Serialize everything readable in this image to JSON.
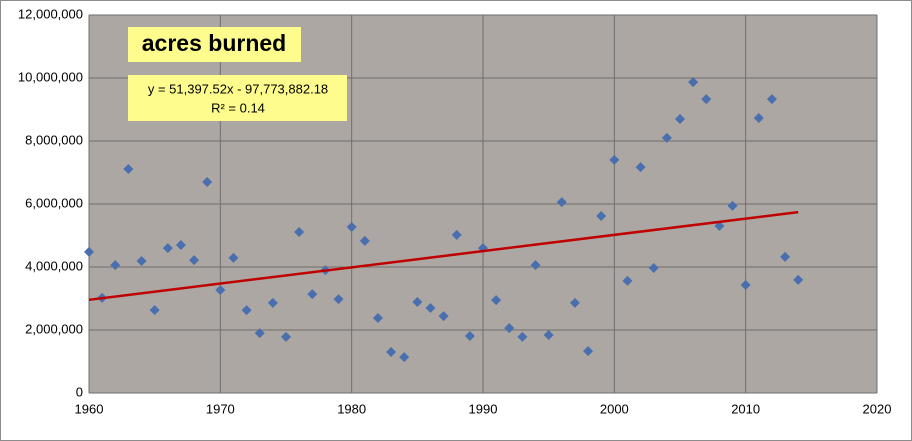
{
  "chart_data": {
    "type": "scatter",
    "title": "acres burned",
    "trendline_equation": "y = 51,397.52x - 97,773,882.18",
    "trendline_r2": "R² = 0.14",
    "x": [
      1960,
      1961,
      1962,
      1963,
      1964,
      1965,
      1966,
      1967,
      1968,
      1969,
      1970,
      1971,
      1972,
      1973,
      1974,
      1975,
      1976,
      1977,
      1978,
      1979,
      1980,
      1981,
      1982,
      1983,
      1984,
      1985,
      1986,
      1987,
      1988,
      1989,
      1990,
      1991,
      1992,
      1993,
      1994,
      1995,
      1996,
      1997,
      1998,
      1999,
      2000,
      2001,
      2002,
      2003,
      2004,
      2005,
      2006,
      2007,
      2008,
      2009,
      2010,
      2011,
      2012,
      2013,
      2014
    ],
    "values": [
      4480000,
      3020000,
      4060000,
      7110000,
      4190000,
      2630000,
      4600000,
      4700000,
      4220000,
      6700000,
      3270000,
      4290000,
      2630000,
      1900000,
      2860000,
      1780000,
      5110000,
      3140000,
      3900000,
      2980000,
      5270000,
      4830000,
      2380000,
      1300000,
      1140000,
      2890000,
      2700000,
      2440000,
      5020000,
      1810000,
      4600000,
      2950000,
      2060000,
      1780000,
      4060000,
      1840000,
      6060000,
      2860000,
      1330000,
      5620000,
      7400000,
      3560000,
      7170000,
      3970000,
      8100000,
      8700000,
      9870000,
      9330000,
      5300000,
      5940000,
      3430000,
      8730000,
      9330000,
      4320000,
      3590000
    ],
    "color": "#4a6fae",
    "trendline_color": "#c00000",
    "xlim": [
      1960,
      2020
    ],
    "xticks": [
      1960,
      1970,
      1980,
      1990,
      2000,
      2010,
      2020
    ],
    "ylim": [
      0,
      12000000
    ],
    "yticks": [
      0,
      {
        "value": 2000000,
        "label": "2,000,000"
      },
      {
        "value": 4000000,
        "label": "4,000,000"
      },
      {
        "value": 6000000,
        "label": "6,000,000"
      },
      {
        "value": 8000000,
        "label": "8,000,000"
      },
      {
        "value": 10000000,
        "label": "10,000,000"
      },
      {
        "value": 12000000,
        "label": "12,000,000"
      }
    ],
    "grid": true
  }
}
